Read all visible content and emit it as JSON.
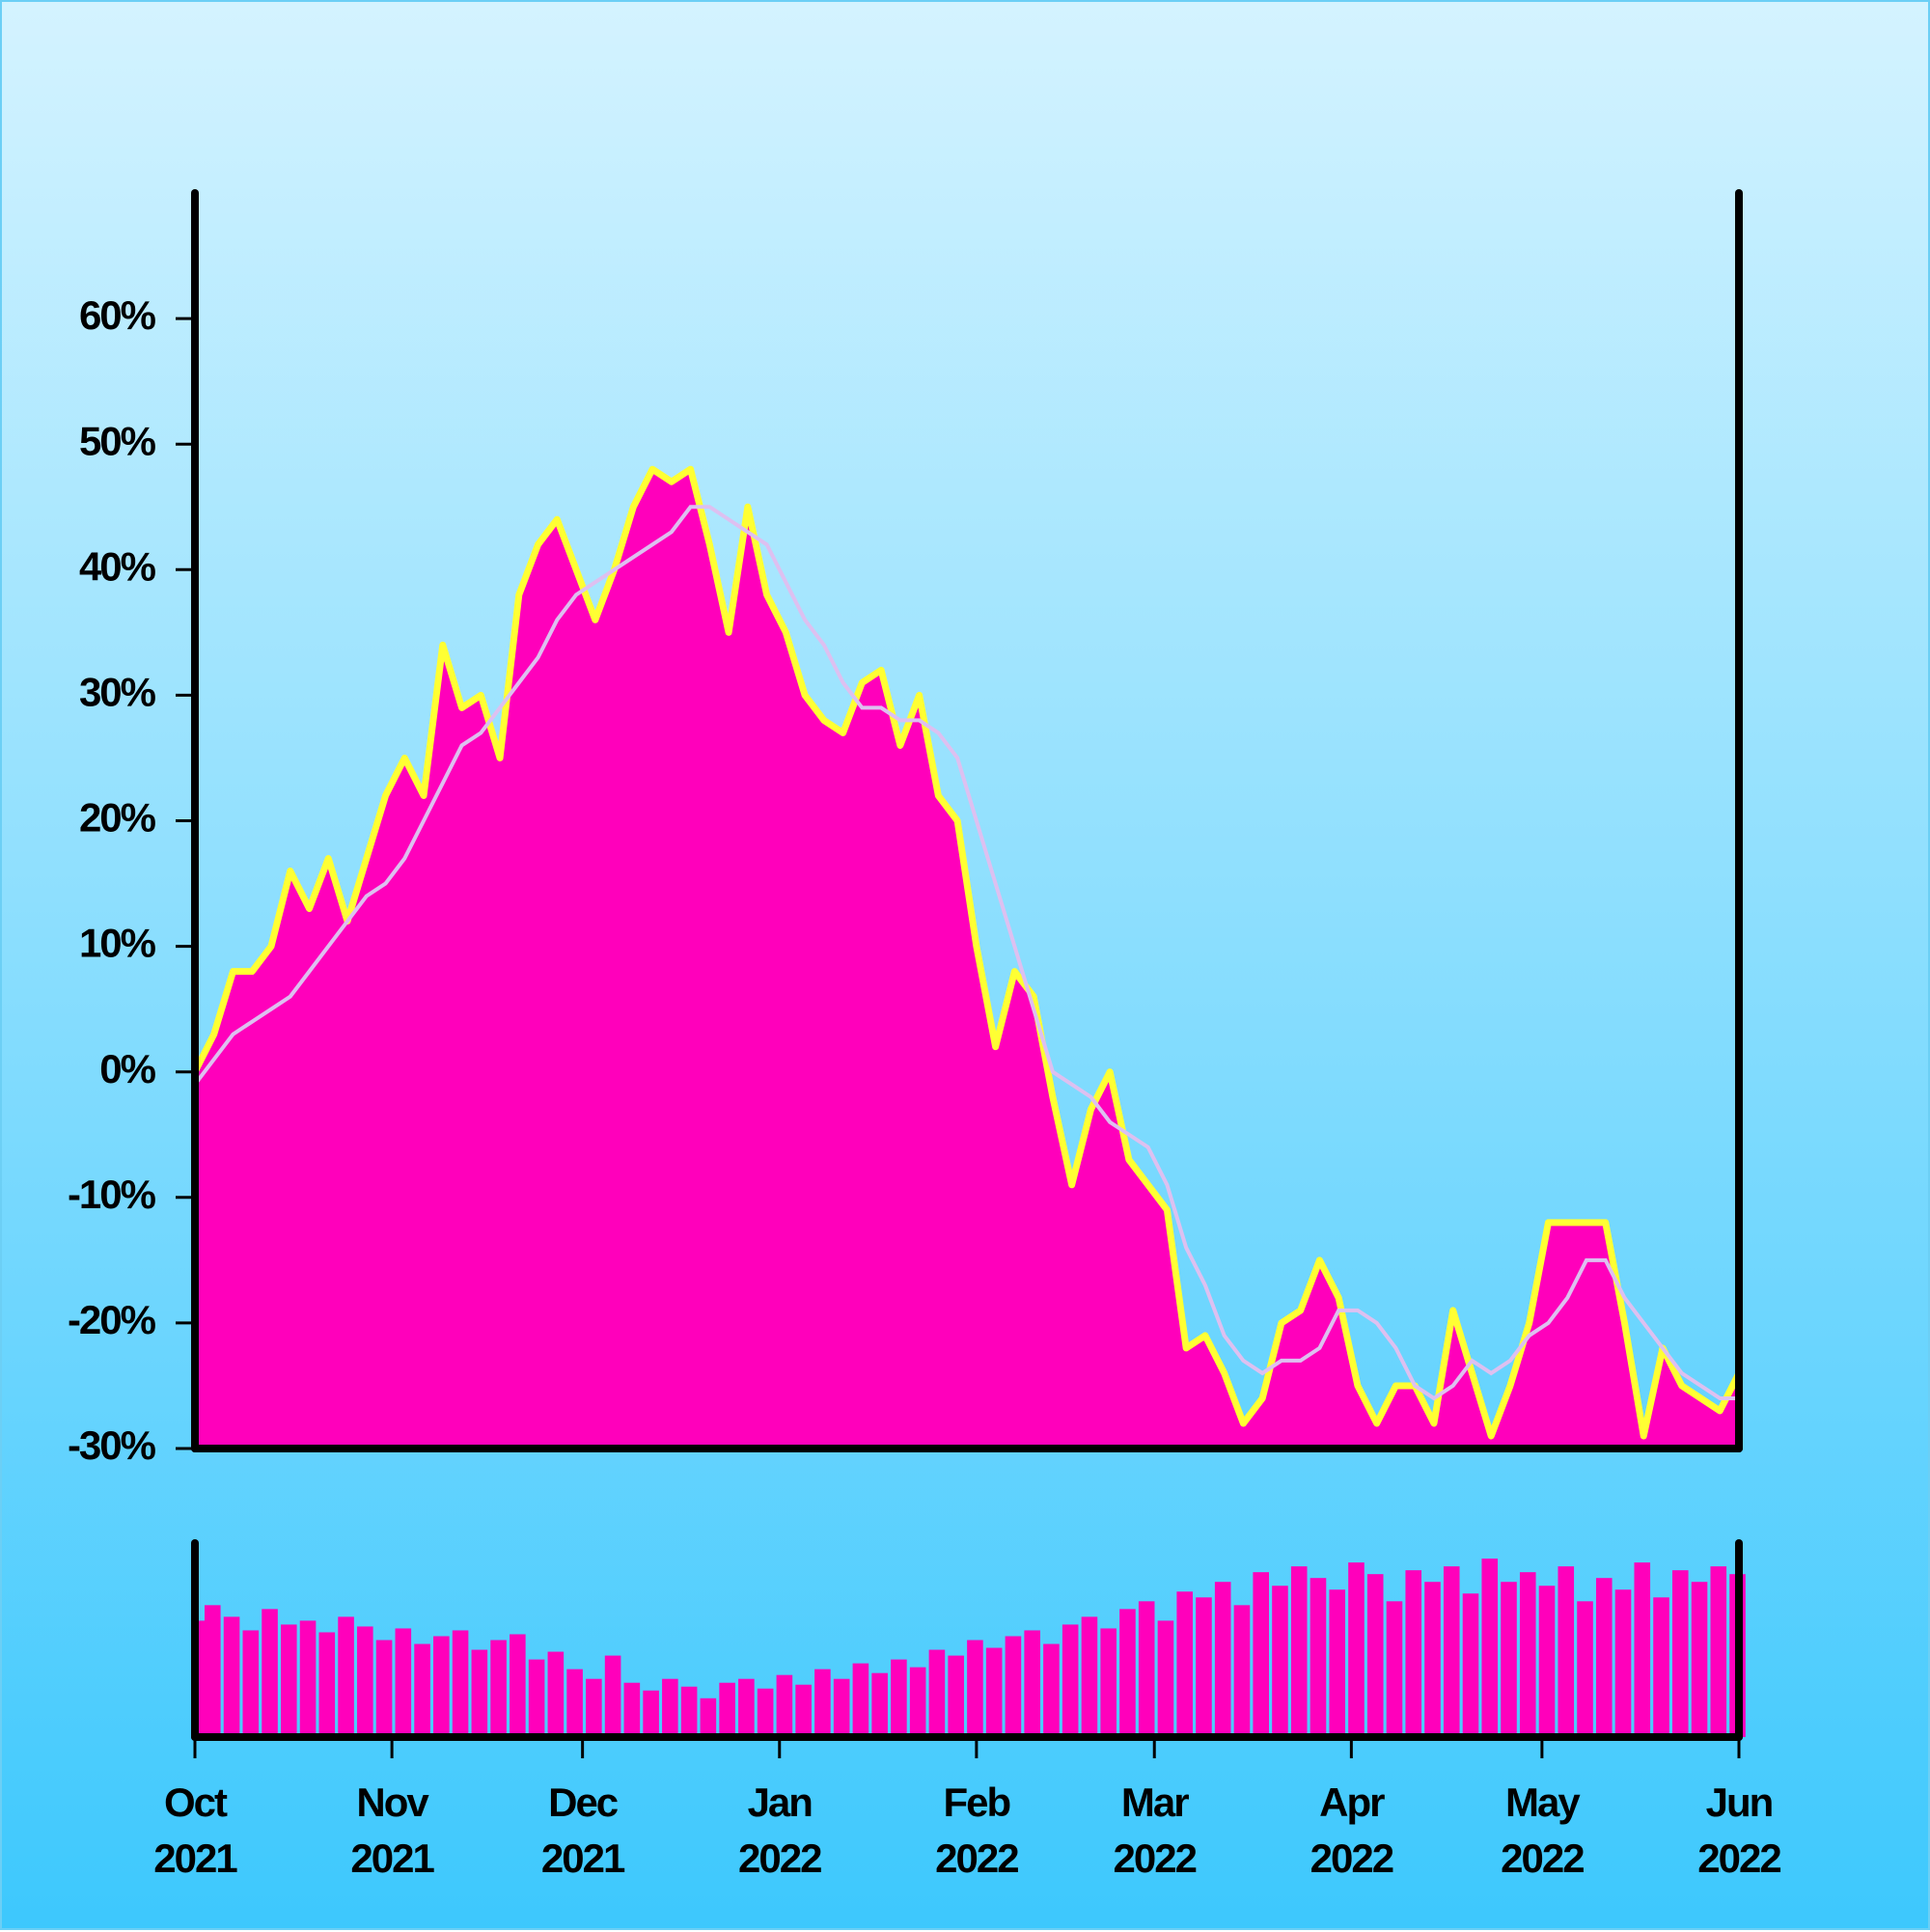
{
  "chart_data": {
    "type": "area",
    "x": [
      0,
      3,
      6,
      9,
      12,
      15,
      18,
      21,
      24,
      27,
      30,
      33,
      36,
      39,
      42,
      45,
      48,
      51,
      54,
      57,
      60,
      63,
      66,
      69,
      72,
      75,
      78,
      81,
      84,
      87,
      90,
      93,
      96,
      99,
      102,
      105,
      108,
      111,
      114,
      117,
      120,
      123,
      126,
      129,
      132,
      135,
      138,
      141,
      144,
      147,
      150,
      153,
      156,
      159,
      162,
      165,
      168,
      171,
      174,
      177,
      180,
      183,
      186,
      189,
      192,
      195,
      198,
      201,
      204,
      207,
      210,
      213,
      216,
      219,
      222,
      225,
      228,
      231,
      234,
      237,
      240,
      243
    ],
    "series": [
      {
        "color": "#ff00bb",
        "edge_color": "#ffff33",
        "values": [
          0,
          3,
          8,
          8,
          10,
          16,
          13,
          17,
          12,
          17,
          22,
          25,
          22,
          34,
          29,
          30,
          25,
          38,
          42,
          44,
          40,
          36,
          40,
          45,
          48,
          47,
          48,
          42,
          35,
          45,
          38,
          35,
          30,
          28,
          27,
          31,
          32,
          26,
          30,
          22,
          20,
          10,
          2,
          8,
          6,
          -2,
          -9,
          -3,
          0,
          -7,
          -9,
          -11,
          -22,
          -21,
          -24,
          -28,
          -26,
          -20,
          -19,
          -15,
          -18,
          -25,
          -28,
          -25,
          -25,
          -28,
          -19,
          -24,
          -29,
          -25,
          -20,
          -12,
          -12,
          -12,
          -12,
          -20,
          -29,
          -22,
          -25,
          -26,
          -27,
          -24
        ]
      },
      {
        "color": "#ddc0f0",
        "values": [
          -1,
          1,
          3,
          4,
          5,
          6,
          8,
          10,
          12,
          14,
          15,
          17,
          20,
          23,
          26,
          27,
          29,
          31,
          33,
          36,
          38,
          39,
          40,
          41,
          42,
          43,
          45,
          45,
          44,
          43,
          42,
          39,
          36,
          34,
          31,
          29,
          29,
          28,
          28,
          27,
          25,
          20,
          15,
          10,
          5,
          0,
          -1,
          -2,
          -4,
          -5,
          -6,
          -9,
          -14,
          -17,
          -21,
          -23,
          -24,
          -23,
          -23,
          -22,
          -19,
          -19,
          -20,
          -22,
          -25,
          -26,
          -25,
          -23,
          -24,
          -23,
          -21,
          -20,
          -18,
          -15,
          -15,
          -18,
          -20,
          -22,
          -24,
          -25,
          -26,
          -26
        ]
      }
    ],
    "volume": {
      "color": "#ff00bb",
      "ylim": [
        0,
        100
      ],
      "values": [
        60,
        68,
        62,
        55,
        66,
        58,
        60,
        54,
        62,
        57,
        50,
        56,
        48,
        52,
        55,
        45,
        50,
        53,
        40,
        44,
        35,
        30,
        42,
        28,
        24,
        30,
        26,
        20,
        28,
        30,
        25,
        32,
        27,
        35,
        30,
        38,
        33,
        40,
        36,
        45,
        42,
        50,
        46,
        52,
        55,
        48,
        58,
        62,
        56,
        66,
        70,
        60,
        75,
        72,
        80,
        68,
        85,
        78,
        88,
        82,
        76,
        90,
        84,
        70,
        86,
        80,
        88,
        74,
        92,
        80,
        85,
        78,
        88,
        70,
        82,
        76,
        90,
        72,
        86,
        80,
        88,
        84
      ]
    },
    "xlim": [
      0,
      243
    ],
    "xticks": [
      {
        "value": 0,
        "label": "Oct 2021"
      },
      {
        "value": 31,
        "label": "Nov 2021"
      },
      {
        "value": 61,
        "label": "Dec 2021"
      },
      {
        "value": 92,
        "label": "Jan 2022"
      },
      {
        "value": 123,
        "label": "Feb 2022"
      },
      {
        "value": 151,
        "label": "Mar 2022"
      },
      {
        "value": 182,
        "label": "Apr 2022"
      },
      {
        "value": 212,
        "label": "May 2022"
      },
      {
        "value": 243,
        "label": "Jun 2022"
      }
    ],
    "ylim": [
      -30,
      70
    ],
    "yticks": [
      {
        "value": -30,
        "label": "-30%"
      },
      {
        "value": -20,
        "label": "-20%"
      },
      {
        "value": -10,
        "label": "-10%"
      },
      {
        "value": 0,
        "label": "0%"
      },
      {
        "value": 10,
        "label": "10%"
      },
      {
        "value": 20,
        "label": "20%"
      },
      {
        "value": 30,
        "label": "30%"
      },
      {
        "value": 40,
        "label": "40%"
      },
      {
        "value": 50,
        "label": "50%"
      },
      {
        "value": 60,
        "label": "60%"
      }
    ]
  }
}
